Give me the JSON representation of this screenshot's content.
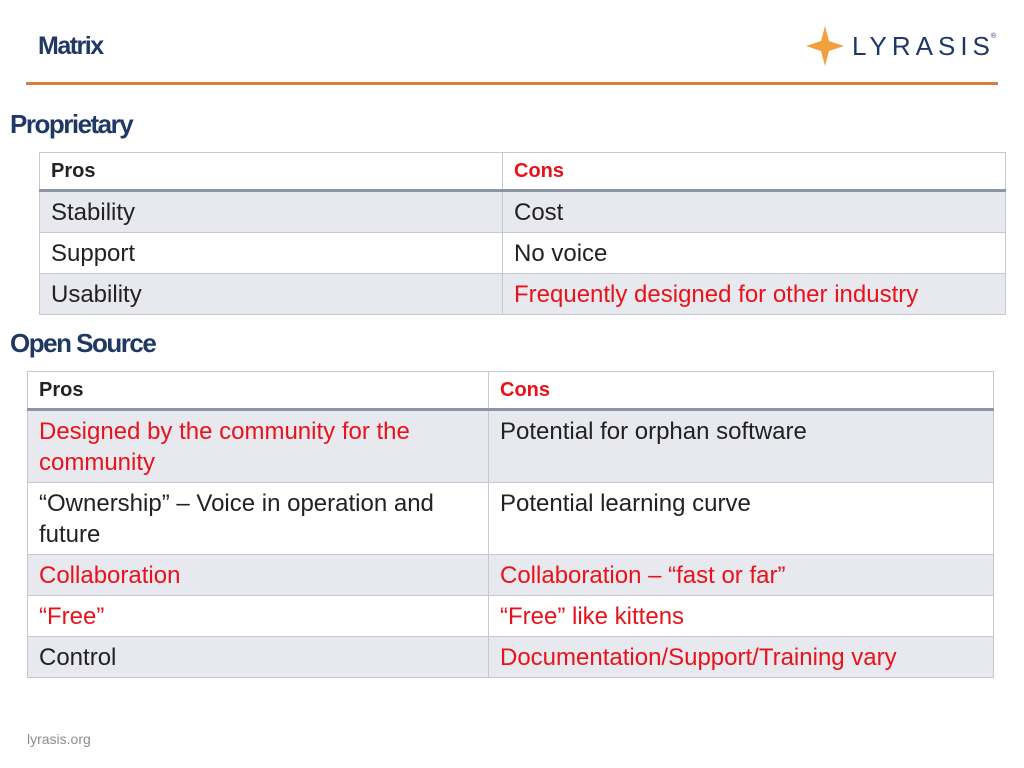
{
  "slide": {
    "title": "Matrix",
    "logo_text": "LYRASIS",
    "logo_reg": "®",
    "footer": "lyrasis.org"
  },
  "colors": {
    "title": "#1f3864",
    "accent_rule": "#e07b39",
    "logo_star": "#f2a03d",
    "emphasis_red": "#e8121a",
    "row_shade": "#e8e9ee"
  },
  "proprietary": {
    "heading": "Proprietary",
    "headers": {
      "pros": "Pros",
      "cons": "Cons"
    },
    "rows": [
      {
        "pros": "Stability",
        "cons": "Cost"
      },
      {
        "pros": "Support",
        "cons": "No voice"
      },
      {
        "pros": "Usability",
        "cons": "Frequently designed for other industry"
      }
    ]
  },
  "open_source": {
    "heading": "Open Source",
    "headers": {
      "pros": "Pros",
      "cons": "Cons"
    },
    "rows": [
      {
        "pros": "Designed by the community for the community",
        "cons": "Potential for orphan software"
      },
      {
        "pros": "“Ownership” – Voice in operation and future",
        "cons": "Potential learning curve"
      },
      {
        "pros": "Collaboration",
        "cons": "Collaboration – “fast or far”"
      },
      {
        "pros": "“Free”",
        "cons": "“Free” like kittens"
      },
      {
        "pros": "Control",
        "cons": "Documentation/Support/Training vary"
      }
    ]
  }
}
